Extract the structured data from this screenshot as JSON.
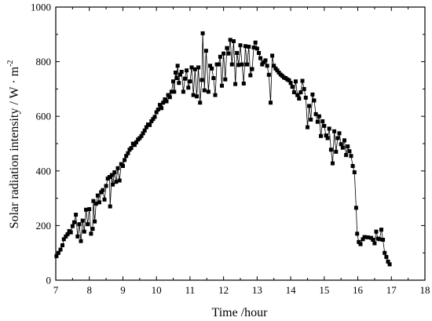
{
  "chart_data": {
    "type": "line",
    "title": "",
    "xlabel": "Time /hour",
    "ylabel_main": "Solar radiation intensity / W · m",
    "ylabel_exponent": "-2",
    "xlim": [
      7,
      18
    ],
    "ylim": [
      0,
      1000
    ],
    "grid": false,
    "legend": "none",
    "x_ticks": [
      7,
      8,
      9,
      10,
      11,
      12,
      13,
      14,
      15,
      16,
      17,
      18
    ],
    "y_ticks": [
      0,
      200,
      400,
      600,
      800,
      1000
    ],
    "x_tick_labels": [
      "7",
      "8",
      "9",
      "10",
      "11",
      "12",
      "13",
      "14",
      "15",
      "16",
      "17",
      "18"
    ],
    "y_tick_labels": [
      "0",
      "200",
      "400",
      "600",
      "800",
      "1000"
    ],
    "series": [
      {
        "marker": "square",
        "color": "#000000",
        "points": [
          [
            7.02,
            88
          ],
          [
            7.08,
            100
          ],
          [
            7.14,
            112
          ],
          [
            7.2,
            128
          ],
          [
            7.24,
            150
          ],
          [
            7.3,
            160
          ],
          [
            7.35,
            168
          ],
          [
            7.4,
            180
          ],
          [
            7.45,
            175
          ],
          [
            7.5,
            198
          ],
          [
            7.55,
            212
          ],
          [
            7.6,
            240
          ],
          [
            7.65,
            160
          ],
          [
            7.7,
            205
          ],
          [
            7.75,
            143
          ],
          [
            7.8,
            218
          ],
          [
            7.85,
            178
          ],
          [
            7.9,
            258
          ],
          [
            7.95,
            205
          ],
          [
            8.0,
            260
          ],
          [
            8.05,
            170
          ],
          [
            8.1,
            188
          ],
          [
            8.12,
            290
          ],
          [
            8.16,
            215
          ],
          [
            8.2,
            280
          ],
          [
            8.25,
            310
          ],
          [
            8.3,
            285
          ],
          [
            8.35,
            322
          ],
          [
            8.4,
            330
          ],
          [
            8.45,
            295
          ],
          [
            8.5,
            345
          ],
          [
            8.55,
            372
          ],
          [
            8.6,
            378
          ],
          [
            8.62,
            270
          ],
          [
            8.67,
            385
          ],
          [
            8.7,
            350
          ],
          [
            8.75,
            395
          ],
          [
            8.8,
            360
          ],
          [
            8.85,
            410
          ],
          [
            8.9,
            365
          ],
          [
            8.95,
            425
          ],
          [
            9.0,
            418
          ],
          [
            9.05,
            440
          ],
          [
            9.1,
            455
          ],
          [
            9.15,
            465
          ],
          [
            9.2,
            478
          ],
          [
            9.25,
            484
          ],
          [
            9.3,
            500
          ],
          [
            9.35,
            495
          ],
          [
            9.4,
            505
          ],
          [
            9.45,
            515
          ],
          [
            9.5,
            520
          ],
          [
            9.55,
            528
          ],
          [
            9.6,
            538
          ],
          [
            9.65,
            548
          ],
          [
            9.7,
            560
          ],
          [
            9.75,
            570
          ],
          [
            9.8,
            568
          ],
          [
            9.85,
            582
          ],
          [
            9.9,
            590
          ],
          [
            9.95,
            598
          ],
          [
            10.0,
            615
          ],
          [
            10.05,
            625
          ],
          [
            10.1,
            642
          ],
          [
            10.15,
            630
          ],
          [
            10.2,
            650
          ],
          [
            10.25,
            662
          ],
          [
            10.3,
            655
          ],
          [
            10.35,
            678
          ],
          [
            10.4,
            670
          ],
          [
            10.45,
            690
          ],
          [
            10.5,
            728
          ],
          [
            10.53,
            690
          ],
          [
            10.57,
            760
          ],
          [
            10.6,
            740
          ],
          [
            10.63,
            785
          ],
          [
            10.67,
            722
          ],
          [
            10.7,
            753
          ],
          [
            10.75,
            763
          ],
          [
            10.8,
            690
          ],
          [
            10.85,
            738
          ],
          [
            10.9,
            768
          ],
          [
            10.95,
            705
          ],
          [
            11.0,
            728
          ],
          [
            11.05,
            779
          ],
          [
            11.1,
            678
          ],
          [
            11.15,
            772
          ],
          [
            11.2,
            673
          ],
          [
            11.25,
            779
          ],
          [
            11.3,
            650
          ],
          [
            11.35,
            733
          ],
          [
            11.38,
            904
          ],
          [
            11.43,
            695
          ],
          [
            11.48,
            840
          ],
          [
            11.55,
            690
          ],
          [
            11.6,
            785
          ],
          [
            11.65,
            775
          ],
          [
            11.7,
            740
          ],
          [
            11.75,
            678
          ],
          [
            11.8,
            790
          ],
          [
            11.85,
            790
          ],
          [
            11.9,
            818
          ],
          [
            11.95,
            712
          ],
          [
            12.0,
            830
          ],
          [
            12.05,
            735
          ],
          [
            12.1,
            850
          ],
          [
            12.15,
            830
          ],
          [
            12.2,
            880
          ],
          [
            12.25,
            790
          ],
          [
            12.3,
            875
          ],
          [
            12.35,
            718
          ],
          [
            12.4,
            832
          ],
          [
            12.45,
            788
          ],
          [
            12.5,
            860
          ],
          [
            12.55,
            790
          ],
          [
            12.6,
            720
          ],
          [
            12.65,
            857
          ],
          [
            12.7,
            790
          ],
          [
            12.75,
            855
          ],
          [
            12.8,
            750
          ],
          [
            12.85,
            773
          ],
          [
            12.9,
            852
          ],
          [
            12.95,
            870
          ],
          [
            13.0,
            848
          ],
          [
            13.05,
            832
          ],
          [
            13.1,
            813
          ],
          [
            13.15,
            790
          ],
          [
            13.2,
            798
          ],
          [
            13.25,
            805
          ],
          [
            13.3,
            785
          ],
          [
            13.35,
            752
          ],
          [
            13.4,
            650
          ],
          [
            13.45,
            822
          ],
          [
            13.5,
            785
          ],
          [
            13.55,
            775
          ],
          [
            13.6,
            768
          ],
          [
            13.65,
            760
          ],
          [
            13.7,
            753
          ],
          [
            13.75,
            748
          ],
          [
            13.8,
            742
          ],
          [
            13.85,
            740
          ],
          [
            13.9,
            735
          ],
          [
            13.95,
            732
          ],
          [
            14.0,
            722
          ],
          [
            14.05,
            708
          ],
          [
            14.1,
            688
          ],
          [
            14.15,
            728
          ],
          [
            14.2,
            678
          ],
          [
            14.25,
            665
          ],
          [
            14.3,
            688
          ],
          [
            14.35,
            730
          ],
          [
            14.4,
            700
          ],
          [
            14.45,
            668
          ],
          [
            14.5,
            560
          ],
          [
            14.55,
            638
          ],
          [
            14.6,
            588
          ],
          [
            14.65,
            680
          ],
          [
            14.7,
            658
          ],
          [
            14.75,
            608
          ],
          [
            14.8,
            580
          ],
          [
            14.85,
            600
          ],
          [
            14.9,
            528
          ],
          [
            14.95,
            582
          ],
          [
            15.0,
            565
          ],
          [
            15.05,
            530
          ],
          [
            15.1,
            520
          ],
          [
            15.15,
            555
          ],
          [
            15.2,
            478
          ],
          [
            15.25,
            428
          ],
          [
            15.3,
            545
          ],
          [
            15.35,
            470
          ],
          [
            15.4,
            520
          ],
          [
            15.45,
            538
          ],
          [
            15.5,
            498
          ],
          [
            15.55,
            485
          ],
          [
            15.6,
            512
          ],
          [
            15.65,
            458
          ],
          [
            15.7,
            490
          ],
          [
            15.75,
            472
          ],
          [
            15.8,
            455
          ],
          [
            15.85,
            418
          ],
          [
            15.9,
            395
          ],
          [
            15.95,
            265
          ],
          [
            15.98,
            170
          ],
          [
            16.03,
            140
          ],
          [
            16.08,
            132
          ],
          [
            16.15,
            150
          ],
          [
            16.2,
            158
          ],
          [
            16.3,
            157
          ],
          [
            16.4,
            155
          ],
          [
            16.45,
            148
          ],
          [
            16.5,
            135
          ],
          [
            16.55,
            178
          ],
          [
            16.6,
            152
          ],
          [
            16.65,
            150
          ],
          [
            16.7,
            185
          ],
          [
            16.75,
            148
          ],
          [
            16.8,
            100
          ],
          [
            16.85,
            85
          ],
          [
            16.9,
            68
          ],
          [
            16.95,
            58
          ]
        ]
      }
    ]
  }
}
